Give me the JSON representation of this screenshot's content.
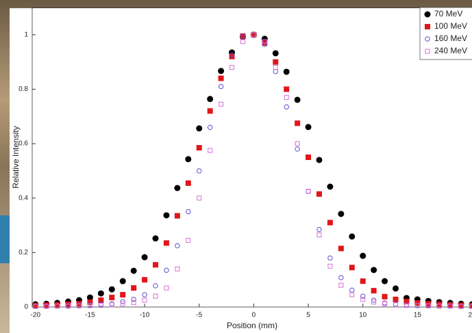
{
  "chart_data": {
    "type": "scatter",
    "x_label": "Position (mm)",
    "y_label": "Relative Intensity",
    "x": [
      -20,
      -19,
      -18,
      -17,
      -16,
      -15,
      -14,
      -13,
      -12,
      -11,
      -10,
      -9,
      -8,
      -7,
      -6,
      -5,
      -4,
      -3,
      -2,
      -1,
      0,
      1,
      2,
      3,
      4,
      5,
      6,
      7,
      8,
      9,
      10,
      11,
      12,
      13,
      14,
      15,
      16,
      17,
      18,
      19,
      20
    ],
    "xlim": [
      -20.3,
      20
    ],
    "ylim": [
      0,
      1.1
    ],
    "xticks": [
      -20,
      -15,
      -10,
      -5,
      0,
      5,
      10,
      15,
      20
    ],
    "yticks": [
      0,
      0.2,
      0.4,
      0.6,
      0.8,
      1
    ],
    "legend": "upper right",
    "series": [
      {
        "name": "70 MeV",
        "color": "#000000",
        "marker": "filled-circle",
        "values": [
          0.01,
          0.012,
          0.015,
          0.02,
          0.025,
          0.035,
          0.05,
          0.065,
          0.095,
          0.133,
          0.183,
          0.252,
          0.337,
          0.437,
          0.543,
          0.656,
          0.764,
          0.867,
          0.935,
          0.992,
          1.0,
          0.985,
          0.932,
          0.864,
          0.761,
          0.661,
          0.54,
          0.442,
          0.342,
          0.259,
          0.188,
          0.136,
          0.095,
          0.068,
          0.033,
          0.028,
          0.022,
          0.018,
          0.015,
          0.012,
          0.01
        ]
      },
      {
        "name": "100 MeV",
        "color": "#e0161b",
        "marker": "filled-square",
        "values": [
          0.005,
          0.007,
          0.008,
          0.01,
          0.012,
          0.018,
          0.025,
          0.035,
          0.045,
          0.07,
          0.1,
          0.155,
          0.235,
          0.335,
          0.455,
          0.585,
          0.72,
          0.84,
          0.92,
          0.995,
          1.0,
          0.97,
          0.9,
          0.8,
          0.675,
          0.55,
          0.415,
          0.31,
          0.215,
          0.145,
          0.095,
          0.06,
          0.038,
          0.028,
          0.02,
          0.015,
          0.012,
          0.01,
          0.008,
          0.006,
          0.005
        ]
      },
      {
        "name": "160 MeV",
        "color": "#5a4fd0",
        "marker": "open-circle",
        "values": [
          0.003,
          0.003,
          0.004,
          0.005,
          0.006,
          0.008,
          0.01,
          0.012,
          0.02,
          0.028,
          0.045,
          0.078,
          0.135,
          0.225,
          0.35,
          0.5,
          0.66,
          0.81,
          0.925,
          0.995,
          1.0,
          0.965,
          0.865,
          0.735,
          0.58,
          0.425,
          0.285,
          0.18,
          0.108,
          0.062,
          0.04,
          0.025,
          0.015,
          0.01,
          0.008,
          0.006,
          0.005,
          0.004,
          0.004,
          0.003,
          0.003
        ]
      },
      {
        "name": "240 MeV",
        "color": "#d86ed8",
        "marker": "open-square",
        "values": [
          0.002,
          0.002,
          0.003,
          0.003,
          0.004,
          0.005,
          0.006,
          0.008,
          0.012,
          0.016,
          0.025,
          0.04,
          0.07,
          0.14,
          0.245,
          0.4,
          0.575,
          0.745,
          0.88,
          0.975,
          1.0,
          0.975,
          0.88,
          0.77,
          0.6,
          0.425,
          0.265,
          0.15,
          0.08,
          0.045,
          0.028,
          0.018,
          0.012,
          0.008,
          0.006,
          0.005,
          0.004,
          0.003,
          0.003,
          0.002,
          0.002
        ]
      }
    ]
  }
}
